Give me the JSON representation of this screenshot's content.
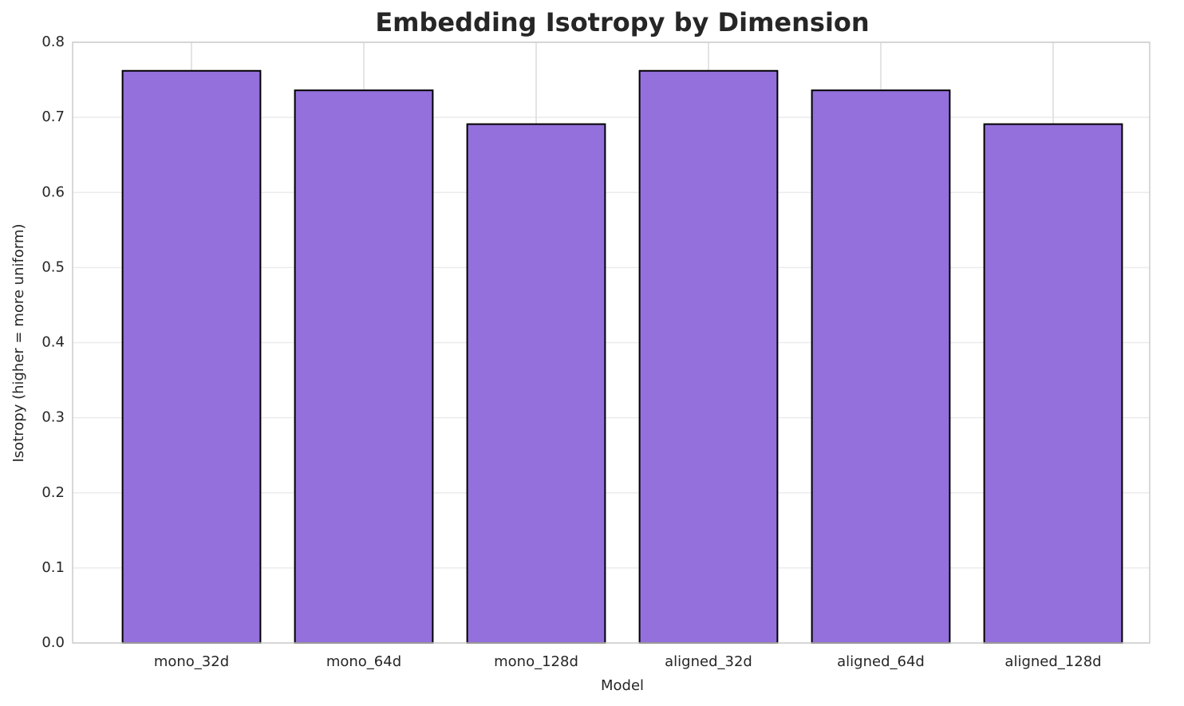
{
  "chart_data": {
    "type": "bar",
    "title": "Embedding Isotropy by Dimension",
    "x_label": "Model",
    "y_label": "Isotropy (higher = more uniform)",
    "categories": [
      "mono_32d",
      "mono_64d",
      "mono_128d",
      "aligned_32d",
      "aligned_64d",
      "aligned_128d"
    ],
    "values": [
      0.762,
      0.736,
      0.691,
      0.762,
      0.736,
      0.691
    ],
    "color": "#9370db",
    "edge_color": "#000000",
    "ylim": [
      0,
      0.8
    ],
    "yticks": [
      {
        "value": 0,
        "label": "0.0"
      },
      0.1,
      0.2,
      0.3,
      0.4,
      0.5,
      0.6,
      0.7,
      0.8
    ],
    "grid": true
  }
}
